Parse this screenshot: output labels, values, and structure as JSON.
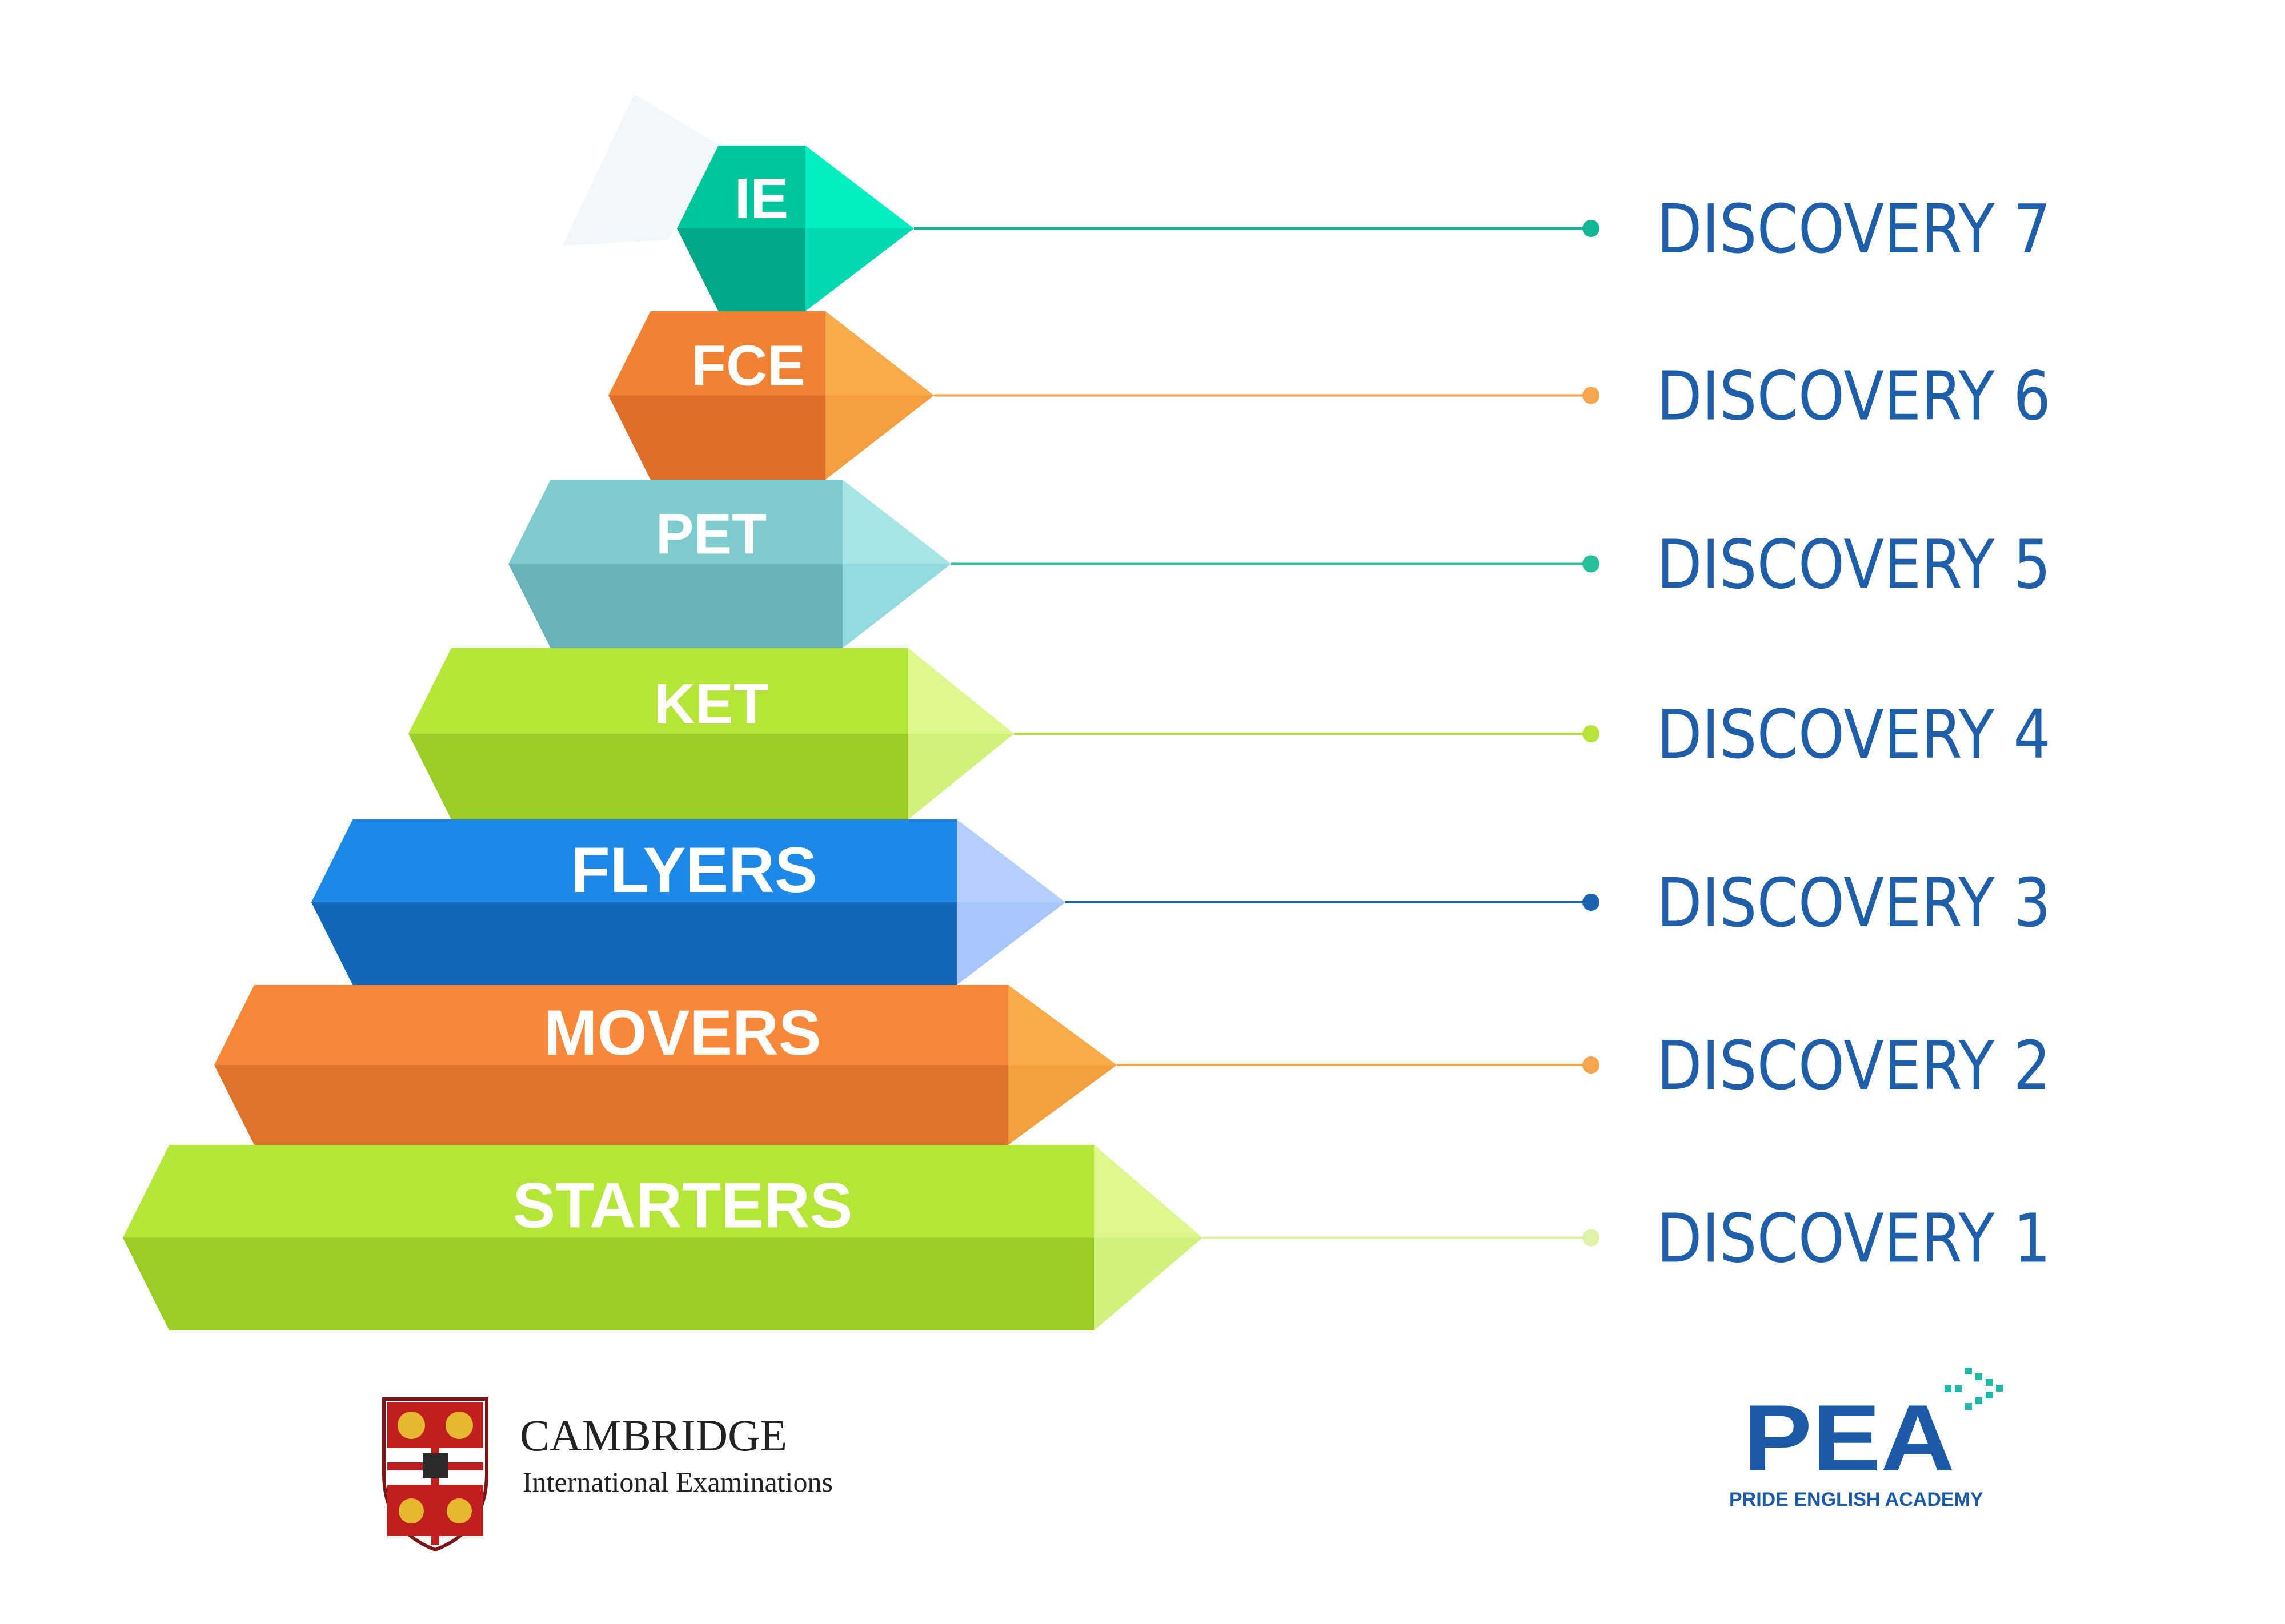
{
  "tiers": [
    {
      "label": "IE",
      "course": "DISCOVERY 7",
      "front_top": "#00c49a",
      "front_bottom": "#00a888",
      "side_top": "#00eec0",
      "side_bottom": "#00d8b0",
      "line": "#12b594",
      "dot": "#12b594"
    },
    {
      "label": "FCE",
      "course": "DISCOVERY 6",
      "front_top": "#f28233",
      "front_bottom": "#de6f2a",
      "side_top": "#f9aa4a",
      "side_bottom": "#f39f3f",
      "line": "#f5a64d",
      "dot": "#f5a64d"
    },
    {
      "label": "PET",
      "course": "DISCOVERY 5",
      "front_top": "#7ecbcd",
      "front_bottom": "#68b3b5",
      "side_top": "#a6e4e6",
      "side_bottom": "#92dadd",
      "line": "#25c09a",
      "dot": "#25c09a"
    },
    {
      "label": "KET",
      "course": "DISCOVERY 4",
      "front_top": "#b4e538",
      "front_bottom": "#9ccc25",
      "side_top": "#dcf78e",
      "side_bottom": "#d0f27c",
      "line": "#b8e33a",
      "dot": "#b8e33a"
    },
    {
      "label": "FLYERS",
      "course": "DISCOVERY 3",
      "front_top": "#1d88e5",
      "front_bottom": "#1267b8",
      "side_top": "#b4cfff",
      "side_bottom": "#a9c6fb",
      "line": "#1c63b0",
      "dot": "#1c63b0"
    },
    {
      "label": "MOVERS",
      "course": "DISCOVERY 2",
      "front_top": "#f88839",
      "front_bottom": "#de742c",
      "side_top": "#f8ab48",
      "side_bottom": "#f2a03d",
      "line": "#f5a64d",
      "dot": "#f5a64d"
    },
    {
      "label": "STARTERS",
      "course": "DISCOVERY 1",
      "front_top": "#b4e538",
      "front_bottom": "#9ccc25",
      "side_top": "#dcf78e",
      "side_bottom": "#d0f27c",
      "line": "#dff3a8",
      "dot": "#dff3a8"
    }
  ],
  "cambridge": {
    "title": "CAMBRIDGE",
    "subtitle": "International Examinations"
  },
  "pea": {
    "wordmark": "PEA",
    "tagline": "PRIDE ENGLISH ACADEMY"
  }
}
